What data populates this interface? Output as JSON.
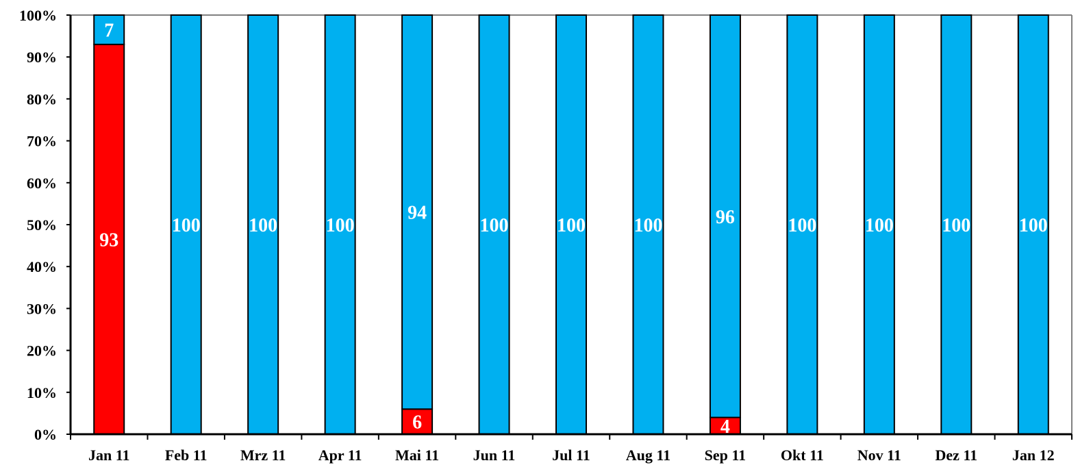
{
  "chart_data": {
    "type": "bar",
    "stacked": true,
    "percent_stacked": true,
    "categories": [
      "Jan 11",
      "Feb 11",
      "Mrz 11",
      "Apr 11",
      "Mai 11",
      "Jun 11",
      "Jul 11",
      "Aug 11",
      "Sep 11",
      "Okt 11",
      "Nov 11",
      "Dez 11",
      "Jan 12"
    ],
    "series": [
      {
        "color": "#ff0000",
        "values": [
          93,
          0,
          0,
          0,
          6,
          0,
          0,
          0,
          4,
          0,
          0,
          0,
          0
        ]
      },
      {
        "color": "#00b0f0",
        "values": [
          7,
          100,
          100,
          100,
          94,
          100,
          100,
          100,
          96,
          100,
          100,
          100,
          100
        ]
      }
    ],
    "y_ticks": [
      "0%",
      "10%",
      "20%",
      "30%",
      "40%",
      "50%",
      "60%",
      "70%",
      "80%",
      "90%",
      "100%"
    ],
    "ylim": [
      0,
      100
    ],
    "title": "",
    "xlabel": "",
    "ylabel": "",
    "grid": false,
    "legend": "none"
  }
}
